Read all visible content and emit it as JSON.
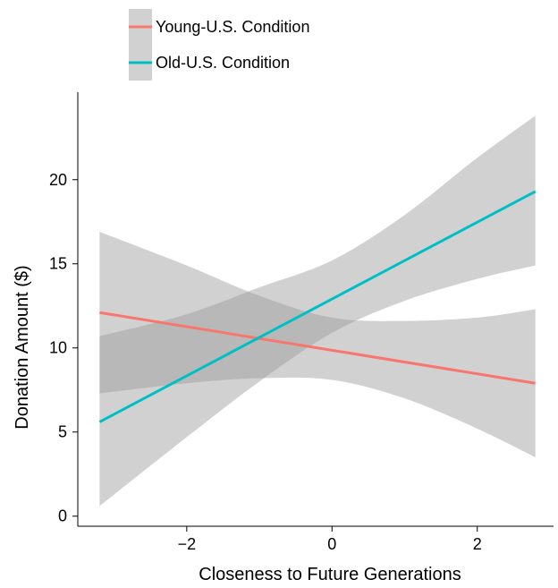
{
  "chart_data": {
    "type": "line",
    "title": "",
    "xlabel": "Closeness to Future Generations",
    "ylabel": "Donation Amount ($)",
    "xlim": [
      -3.5,
      3.05
    ],
    "ylim": [
      -0.6,
      25.2
    ],
    "x_ticks": [
      -2,
      0,
      2
    ],
    "x_tick_labels": [
      "−2",
      "0",
      "2"
    ],
    "y_ticks": [
      0,
      5,
      10,
      15,
      20
    ],
    "y_tick_labels": [
      "0",
      "5",
      "10",
      "15",
      "20"
    ],
    "grid": false,
    "legend_position": "top-left, above plot",
    "series": [
      {
        "name": "Young-U.S. Condition",
        "color": "#F8766D",
        "band_color": "#999999",
        "x": [
          -3.2,
          -2.0,
          -1.0,
          0.0,
          1.0,
          2.0,
          2.8
        ],
        "y": [
          12.1,
          11.4,
          10.7,
          9.9,
          9.2,
          8.4,
          7.9
        ],
        "ci_lower": [
          7.3,
          7.9,
          8.2,
          8.1,
          7.0,
          5.2,
          3.5
        ],
        "ci_upper": [
          16.9,
          14.9,
          13.1,
          11.8,
          11.6,
          11.8,
          12.3
        ]
      },
      {
        "name": "Old-U.S. Condition",
        "color": "#00BFC4",
        "band_color": "#999999",
        "x": [
          -3.2,
          -2.0,
          -1.0,
          0.0,
          1.0,
          2.0,
          2.8
        ],
        "y": [
          5.6,
          8.4,
          10.7,
          13.0,
          15.3,
          17.6,
          19.3
        ],
        "ci_lower": [
          0.6,
          4.7,
          8.0,
          10.9,
          12.8,
          14.1,
          14.9
        ],
        "ci_upper": [
          10.7,
          12.0,
          13.6,
          15.2,
          17.9,
          21.3,
          23.8
        ]
      }
    ]
  }
}
